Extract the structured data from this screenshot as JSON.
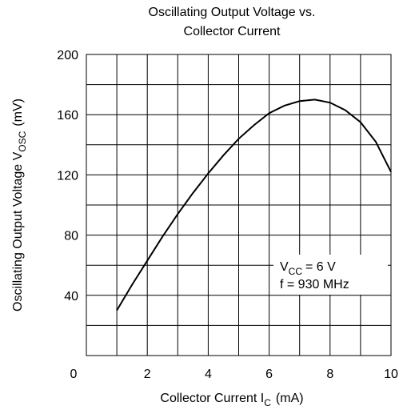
{
  "chart_data": {
    "type": "line",
    "title": [
      "Oscillating Output Voltage vs.",
      "Collector Current"
    ],
    "x_label": {
      "text": "Collector Current I",
      "sub": "C",
      "unit": "(mA)"
    },
    "y_label": {
      "text": "Oscillating Output Voltage  V",
      "sub": "OSC",
      "unit": "(mV)"
    },
    "annotation": {
      "line1": {
        "text": "V",
        "sub": "CC",
        "rest": "= 6 V"
      },
      "line2": "f = 930 MHz"
    },
    "x": [
      1,
      1.5,
      2,
      2.5,
      3,
      3.5,
      4,
      4.5,
      5,
      5.5,
      6,
      6.5,
      7,
      7.5,
      8,
      8.5,
      9,
      9.5,
      10
    ],
    "series": [
      {
        "name": "VOSC",
        "color": "#000000",
        "values": [
          30,
          47,
          63,
          79,
          94,
          108,
          121,
          133,
          144,
          153,
          161,
          166,
          169,
          170,
          168,
          163,
          155,
          142,
          122
        ]
      }
    ],
    "xlim": [
      0,
      10
    ],
    "xticks": [
      0,
      2,
      4,
      6,
      8,
      10
    ],
    "ylim": [
      0,
      200
    ],
    "yticks": [
      40,
      80,
      120,
      160,
      200
    ],
    "grid": true
  }
}
